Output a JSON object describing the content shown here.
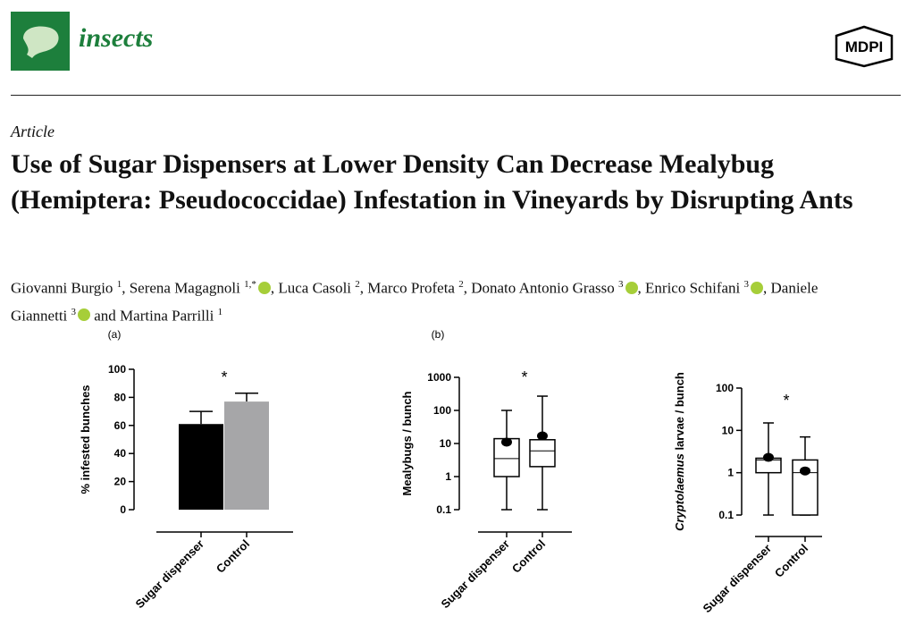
{
  "header": {
    "journal": "insects",
    "publisher": "MDPI"
  },
  "article_type": "Article",
  "title": "Use of Sugar Dispensers at Lower Density Can Decrease Mealybug (Hemiptera: Pseudococcidae) Infestation in Vineyards by Disrupting Ants",
  "authors": [
    {
      "name": "Giovanni Burgio",
      "sup": "1",
      "orcid": false,
      "sep": ","
    },
    {
      "name": "Serena Magagnoli",
      "sup": "1,*",
      "orcid": true,
      "sep": ","
    },
    {
      "name": "Luca Casoli",
      "sup": "2",
      "orcid": false,
      "sep": ","
    },
    {
      "name": "Marco Profeta",
      "sup": "2",
      "orcid": false,
      "sep": ","
    },
    {
      "name": "Donato Antonio Grasso",
      "sup": "3",
      "orcid": true,
      "sep": ","
    },
    {
      "name": "Enrico Schifani",
      "sup": "3",
      "orcid": true,
      "sep": ","
    },
    {
      "name": "Daniele Giannetti",
      "sup": "3",
      "orcid": true,
      "sep": "and"
    },
    {
      "name": "Martina Parrilli",
      "sup": "1",
      "orcid": false
    }
  ],
  "chart_data": [
    {
      "type": "bar",
      "panel": "(a)",
      "ylabel": [
        {
          "text": "% infested bunches"
        }
      ],
      "categories": [
        "Sugar dispenser",
        "Control"
      ],
      "values": [
        61,
        77
      ],
      "errors": [
        9,
        6
      ],
      "colors": [
        "#000000",
        "#a6a6a8"
      ],
      "ylim": [
        0,
        100
      ],
      "yticks": [
        0,
        20,
        40,
        60,
        80,
        100
      ],
      "annotation": "*"
    },
    {
      "type": "box",
      "panel": "(b)",
      "ylabel": [
        {
          "text": "Mealybugs / bunch"
        }
      ],
      "log_scale": true,
      "categories": [
        "Sugar dispenser",
        "Control"
      ],
      "boxes": [
        {
          "low": 0.1,
          "q1": 1,
          "median": 3.5,
          "q3": 14,
          "high": 100,
          "mean": 11
        },
        {
          "low": 0.1,
          "q1": 2,
          "median": 6,
          "q3": 13,
          "high": 270,
          "mean": 17
        }
      ],
      "ylim": [
        0.1,
        1000
      ],
      "yticks": [
        0.1,
        1,
        10,
        100,
        1000
      ],
      "annotation": "*"
    },
    {
      "type": "box",
      "ylabel": [
        {
          "text": "Cryptolaemus",
          "italic": true
        },
        {
          "text": " larvae / bunch"
        }
      ],
      "log_scale": true,
      "categories": [
        "Sugar dispenser",
        "Control"
      ],
      "boxes": [
        {
          "low": 0.1,
          "q1": 1,
          "median": 2,
          "q3": 2.2,
          "high": 15,
          "mean": 2.3
        },
        {
          "low": 0.1,
          "q1": 0.1,
          "median": 1,
          "q3": 2,
          "high": 7,
          "mean": 1.1
        }
      ],
      "ylim": [
        0.1,
        100
      ],
      "yticks": [
        0.1,
        1,
        10,
        100
      ],
      "annotation": "*"
    }
  ]
}
